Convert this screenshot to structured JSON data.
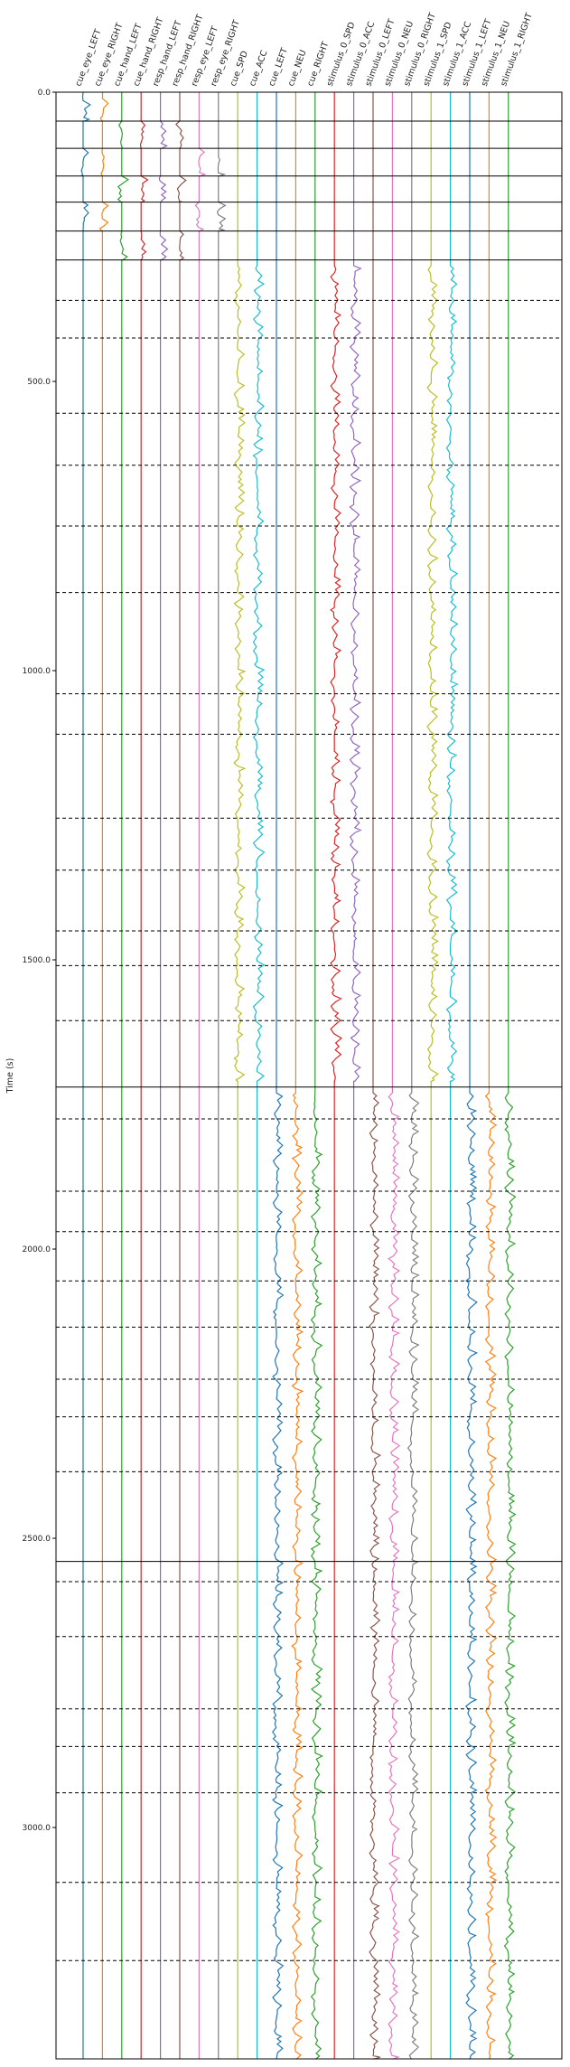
{
  "chart_data": {
    "type": "line",
    "title": "",
    "xlabel": "",
    "ylabel": "Time (s)",
    "ylim": [
      0,
      3400
    ],
    "y_inverted": true,
    "y_ticks": [
      0,
      500,
      1000,
      1500,
      2000,
      2500,
      3000
    ],
    "y_tick_labels": [
      "0.0",
      "500.0",
      "1000.0",
      "1500.0",
      "2000.0",
      "2500.0",
      "3000.0"
    ],
    "series": [
      {
        "name": "cue_eye_LEFT",
        "color": "#1f77b4"
      },
      {
        "name": "cue_eye_RIGHT",
        "color": "#ff7f0e"
      },
      {
        "name": "cue_hand_LEFT",
        "color": "#2ca02c"
      },
      {
        "name": "cue_hand_RIGHT",
        "color": "#d62728"
      },
      {
        "name": "resp_hand_LEFT",
        "color": "#9467bd"
      },
      {
        "name": "resp_hand_RIGHT",
        "color": "#8c564b"
      },
      {
        "name": "resp_eye_LEFT",
        "color": "#e377c2"
      },
      {
        "name": "resp_eye_RIGHT",
        "color": "#7f7f7f"
      },
      {
        "name": "cue_SPD",
        "color": "#bcbd22"
      },
      {
        "name": "cue_ACC",
        "color": "#17becf"
      },
      {
        "name": "cue_LEFT",
        "color": "#1f77b4"
      },
      {
        "name": "cue_NEU",
        "color": "#ff7f0e"
      },
      {
        "name": "cue_RIGHT",
        "color": "#2ca02c"
      },
      {
        "name": "stimulus_0_SPD",
        "color": "#d62728"
      },
      {
        "name": "stimulus_0_ACC",
        "color": "#9467bd"
      },
      {
        "name": "stimulus_0_LEFT",
        "color": "#8c564b"
      },
      {
        "name": "stimulus_0_NEU",
        "color": "#e377c2"
      },
      {
        "name": "stimulus_0_RIGHT",
        "color": "#7f7f7f"
      },
      {
        "name": "stimulus_1_SPD",
        "color": "#bcbd22"
      },
      {
        "name": "stimulus_1_ACC",
        "color": "#17becf"
      },
      {
        "name": "stimulus_1_LEFT",
        "color": "#1f77b4"
      },
      {
        "name": "stimulus_1_NEU",
        "color": "#ff7f0e"
      },
      {
        "name": "stimulus_1_RIGHT",
        "color": "#2ca02c"
      }
    ],
    "run_boundaries_solid": [
      0,
      50,
      97,
      145,
      190,
      240,
      290,
      1720,
      2540
    ],
    "block_boundaries_dashed": [
      360,
      425,
      555,
      645,
      750,
      865,
      1040,
      1110,
      1255,
      1345,
      1450,
      1510,
      1605,
      1775,
      1900,
      1970,
      2055,
      2135,
      2225,
      2290,
      2385,
      2575,
      2670,
      2795,
      2860,
      2940,
      3095,
      3230
    ],
    "active_segments": [
      {
        "series": [
          "cue_eye_LEFT",
          "cue_eye_RIGHT"
        ],
        "from": 0,
        "to": 50
      },
      {
        "series": [
          "cue_hand_LEFT",
          "cue_hand_RIGHT",
          "resp_hand_LEFT",
          "resp_hand_RIGHT"
        ],
        "from": 50,
        "to": 97
      },
      {
        "series": [
          "cue_eye_LEFT",
          "cue_eye_RIGHT",
          "resp_eye_LEFT",
          "resp_eye_RIGHT"
        ],
        "from": 97,
        "to": 145
      },
      {
        "series": [
          "cue_hand_LEFT",
          "cue_hand_RIGHT",
          "resp_hand_LEFT",
          "resp_hand_RIGHT"
        ],
        "from": 145,
        "to": 190
      },
      {
        "series": [
          "cue_eye_LEFT",
          "cue_eye_RIGHT",
          "resp_eye_LEFT",
          "resp_eye_RIGHT"
        ],
        "from": 190,
        "to": 240
      },
      {
        "series": [
          "cue_hand_LEFT",
          "cue_hand_RIGHT",
          "resp_hand_LEFT",
          "resp_hand_RIGHT"
        ],
        "from": 240,
        "to": 290
      },
      {
        "series": [
          "cue_SPD",
          "cue_ACC",
          "stimulus_0_SPD",
          "stimulus_0_ACC",
          "stimulus_1_SPD",
          "stimulus_1_ACC"
        ],
        "from": 300,
        "to": 1710
      },
      {
        "series": [
          "cue_LEFT",
          "cue_NEU",
          "cue_RIGHT",
          "stimulus_0_LEFT",
          "stimulus_0_NEU",
          "stimulus_0_RIGHT",
          "stimulus_1_LEFT",
          "stimulus_1_NEU",
          "stimulus_1_RIGHT"
        ],
        "from": 1730,
        "to": 3400
      }
    ],
    "grid": false,
    "legend": "none"
  }
}
